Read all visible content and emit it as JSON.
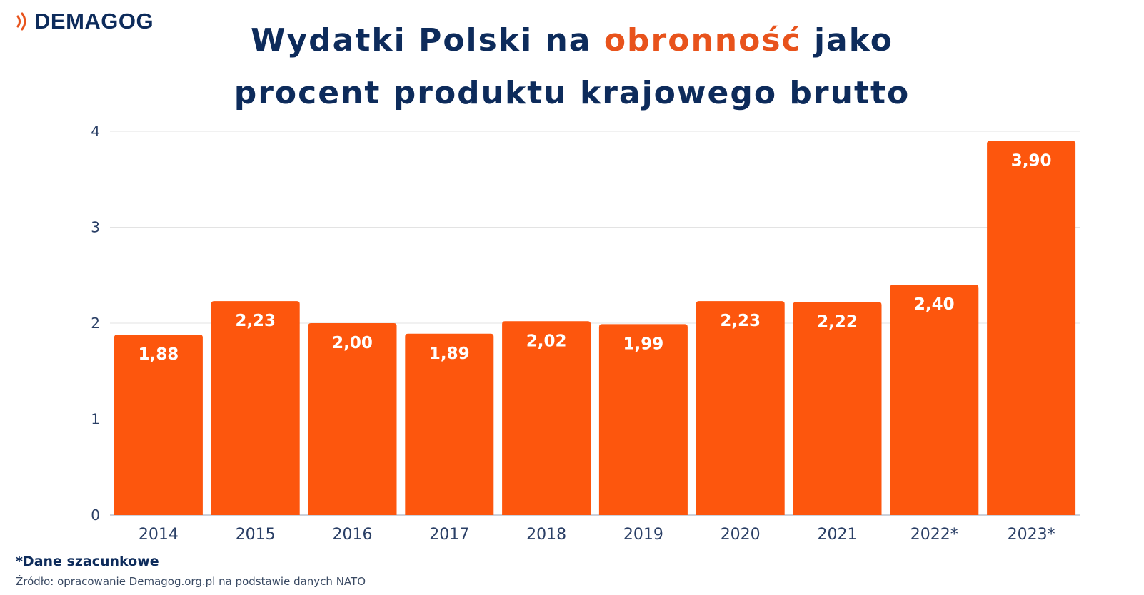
{
  "logo": {
    "text": "DEMAGOG",
    "color": "#e8531c"
  },
  "title": {
    "line1_before": "Wydatki Polski na ",
    "line1_accent": "obronność",
    "line1_after": " jako",
    "line2": "procent produktu krajowego brutto"
  },
  "colors": {
    "bar": "#fd560d",
    "title": "#0d2b5b",
    "accent": "#e8531c",
    "grid": "#e3e3e3"
  },
  "chart_data": {
    "type": "bar",
    "categories": [
      "2014",
      "2015",
      "2016",
      "2017",
      "2018",
      "2019",
      "2020",
      "2021",
      "2022*",
      "2023*"
    ],
    "values": [
      1.88,
      2.23,
      2.0,
      1.89,
      2.02,
      1.99,
      2.23,
      2.22,
      2.4,
      3.9
    ],
    "value_labels": [
      "1,88",
      "2,23",
      "2,00",
      "1,89",
      "2,02",
      "1,99",
      "2,23",
      "2,22",
      "2,40",
      "3,90"
    ],
    "ylim": [
      0,
      4
    ],
    "yticks": [
      "0",
      "1",
      "2",
      "3",
      "4"
    ],
    "grid": true
  },
  "footer": {
    "note": "*Dane szacunkowe",
    "source": "Źródło: opracowanie Demagog.org.pl na podstawie danych NATO"
  }
}
